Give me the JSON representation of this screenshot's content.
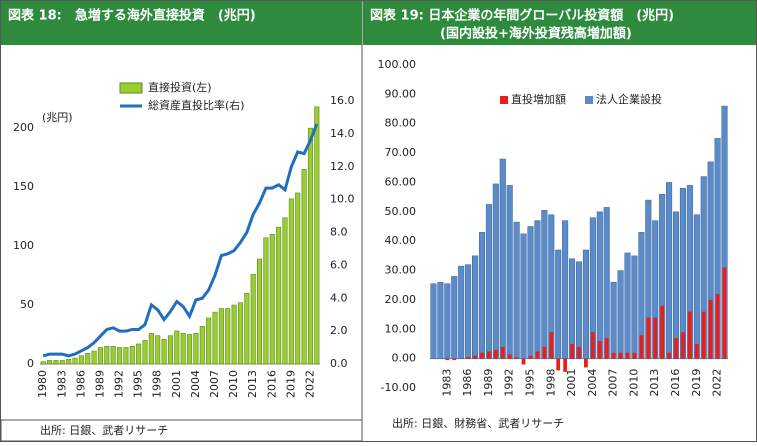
{
  "chart_data": [
    {
      "type": "combo",
      "title": "図表 18:　急増する海外直接投資　(兆円)",
      "ylabel": "(兆円)",
      "source": "出所: 日銀、武者リサーチ",
      "categories": [
        "1980",
        null,
        null,
        "1983",
        null,
        null,
        "1986",
        null,
        null,
        "1989",
        null,
        null,
        "1992",
        null,
        null,
        "1995",
        null,
        null,
        "1998",
        null,
        null,
        "2001",
        null,
        null,
        "2004",
        null,
        null,
        "2007",
        null,
        null,
        "2010",
        null,
        null,
        "2013",
        null,
        null,
        "2016",
        null,
        null,
        "2019",
        null,
        null,
        "2022",
        null
      ],
      "series": [
        {
          "name": "直接投資(左)",
          "type": "bar",
          "color": "#9acd32",
          "values": [
            2,
            3,
            3,
            3,
            4,
            5,
            7,
            9,
            11,
            14,
            15,
            15,
            14,
            14,
            15,
            17,
            20,
            26,
            24,
            21,
            24,
            28,
            26,
            25,
            26,
            32,
            39,
            44,
            47,
            47,
            50,
            52,
            60,
            76,
            89,
            107,
            110,
            116,
            124,
            140,
            145,
            165,
            200,
            218
          ]
        },
        {
          "name": "総資産直投比率(右)",
          "type": "line",
          "axis": "y2",
          "color": "#1f6fbf",
          "values": [
            0.5,
            0.6,
            0.6,
            0.6,
            0.5,
            0.6,
            0.8,
            1.0,
            1.3,
            1.7,
            2.1,
            2.2,
            2.0,
            2.0,
            2.1,
            2.1,
            2.4,
            3.6,
            3.3,
            2.7,
            3.2,
            3.8,
            3.5,
            2.9,
            3.9,
            4.0,
            4.5,
            5.4,
            6.6,
            6.7,
            6.9,
            7.4,
            8.0,
            9.1,
            9.8,
            10.7,
            10.7,
            10.9,
            10.6,
            12.0,
            12.9,
            12.8,
            13.6,
            14.6
          ]
        }
      ],
      "ylim": [
        0,
        223
      ],
      "yticks": [
        0,
        50,
        100,
        150,
        200
      ],
      "y2lim": [
        0,
        16
      ],
      "y2ticks": [
        {
          "value": 0,
          "label": "0.0"
        },
        {
          "value": 2,
          "label": "2.0"
        },
        {
          "value": 4,
          "label": "4.0"
        },
        {
          "value": 6,
          "label": "6.0"
        },
        {
          "value": 8,
          "label": "8.0"
        },
        {
          "value": 10,
          "label": "10.0"
        },
        {
          "value": 12,
          "label": "12.0"
        },
        {
          "value": 14,
          "label": "14.0"
        },
        {
          "value": 16,
          "label": "16.0"
        }
      ],
      "grid": false
    },
    {
      "type": "bar",
      "title": "図表 19: 日本企業の年間グローバル投資額　(兆円)",
      "subtitle": "(国内設投+海外投資残高増加額)",
      "source": "出所: 日銀、財務省、武者リサーチ",
      "categories": [
        null,
        null,
        "1983",
        null,
        null,
        "1986",
        null,
        null,
        "1989",
        null,
        null,
        "1992",
        null,
        null,
        "1995",
        null,
        null,
        "1998",
        null,
        null,
        "2001",
        null,
        null,
        "2004",
        null,
        null,
        "2007",
        null,
        null,
        "2010",
        null,
        null,
        "2013",
        null,
        null,
        "2016",
        null,
        null,
        "2019",
        null,
        null,
        "2022",
        null
      ],
      "series": [
        {
          "name": "法人企業設投",
          "color": "#5b8bc9",
          "values": [
            25.5,
            26,
            25.5,
            28,
            31.5,
            32,
            35,
            43,
            52.5,
            59.5,
            68,
            59,
            46.5,
            42.5,
            45,
            47,
            50.5,
            49,
            37,
            47,
            34,
            33,
            37,
            48,
            50,
            51.5,
            26,
            30,
            36,
            35,
            43,
            54,
            47,
            56,
            60,
            50,
            58,
            59,
            49,
            62,
            67,
            75,
            86
          ]
        },
        {
          "name": "直投増加額",
          "color": "#e8201c",
          "values": [
            0,
            0,
            -0.5,
            -0.5,
            0,
            0.5,
            1,
            2,
            2.5,
            3,
            4,
            1.5,
            0.5,
            -2,
            1,
            2.5,
            4,
            9,
            -4,
            -4.5,
            5,
            4,
            -3,
            9,
            6,
            7,
            2,
            2,
            2,
            2,
            8,
            14,
            14,
            18,
            2,
            7,
            9,
            16,
            5,
            16,
            20,
            22,
            31
          ]
        }
      ],
      "ylim": [
        -10,
        100
      ],
      "yticks": [
        {
          "value": -10,
          "label": "-10.00"
        },
        {
          "value": 0,
          "label": "0.00"
        },
        {
          "value": 10,
          "label": "10.00"
        },
        {
          "value": 20,
          "label": "20.00"
        },
        {
          "value": 30,
          "label": "30.00"
        },
        {
          "value": 40,
          "label": "40.00"
        },
        {
          "value": 50,
          "label": "50.00"
        },
        {
          "value": 60,
          "label": "60.00"
        },
        {
          "value": 70,
          "label": "70.00"
        },
        {
          "value": 80,
          "label": "80.00"
        },
        {
          "value": 90,
          "label": "90.00"
        },
        {
          "value": {
            "value": 100
          },
          "label": "100.00"
        }
      ],
      "grid": false
    }
  ]
}
